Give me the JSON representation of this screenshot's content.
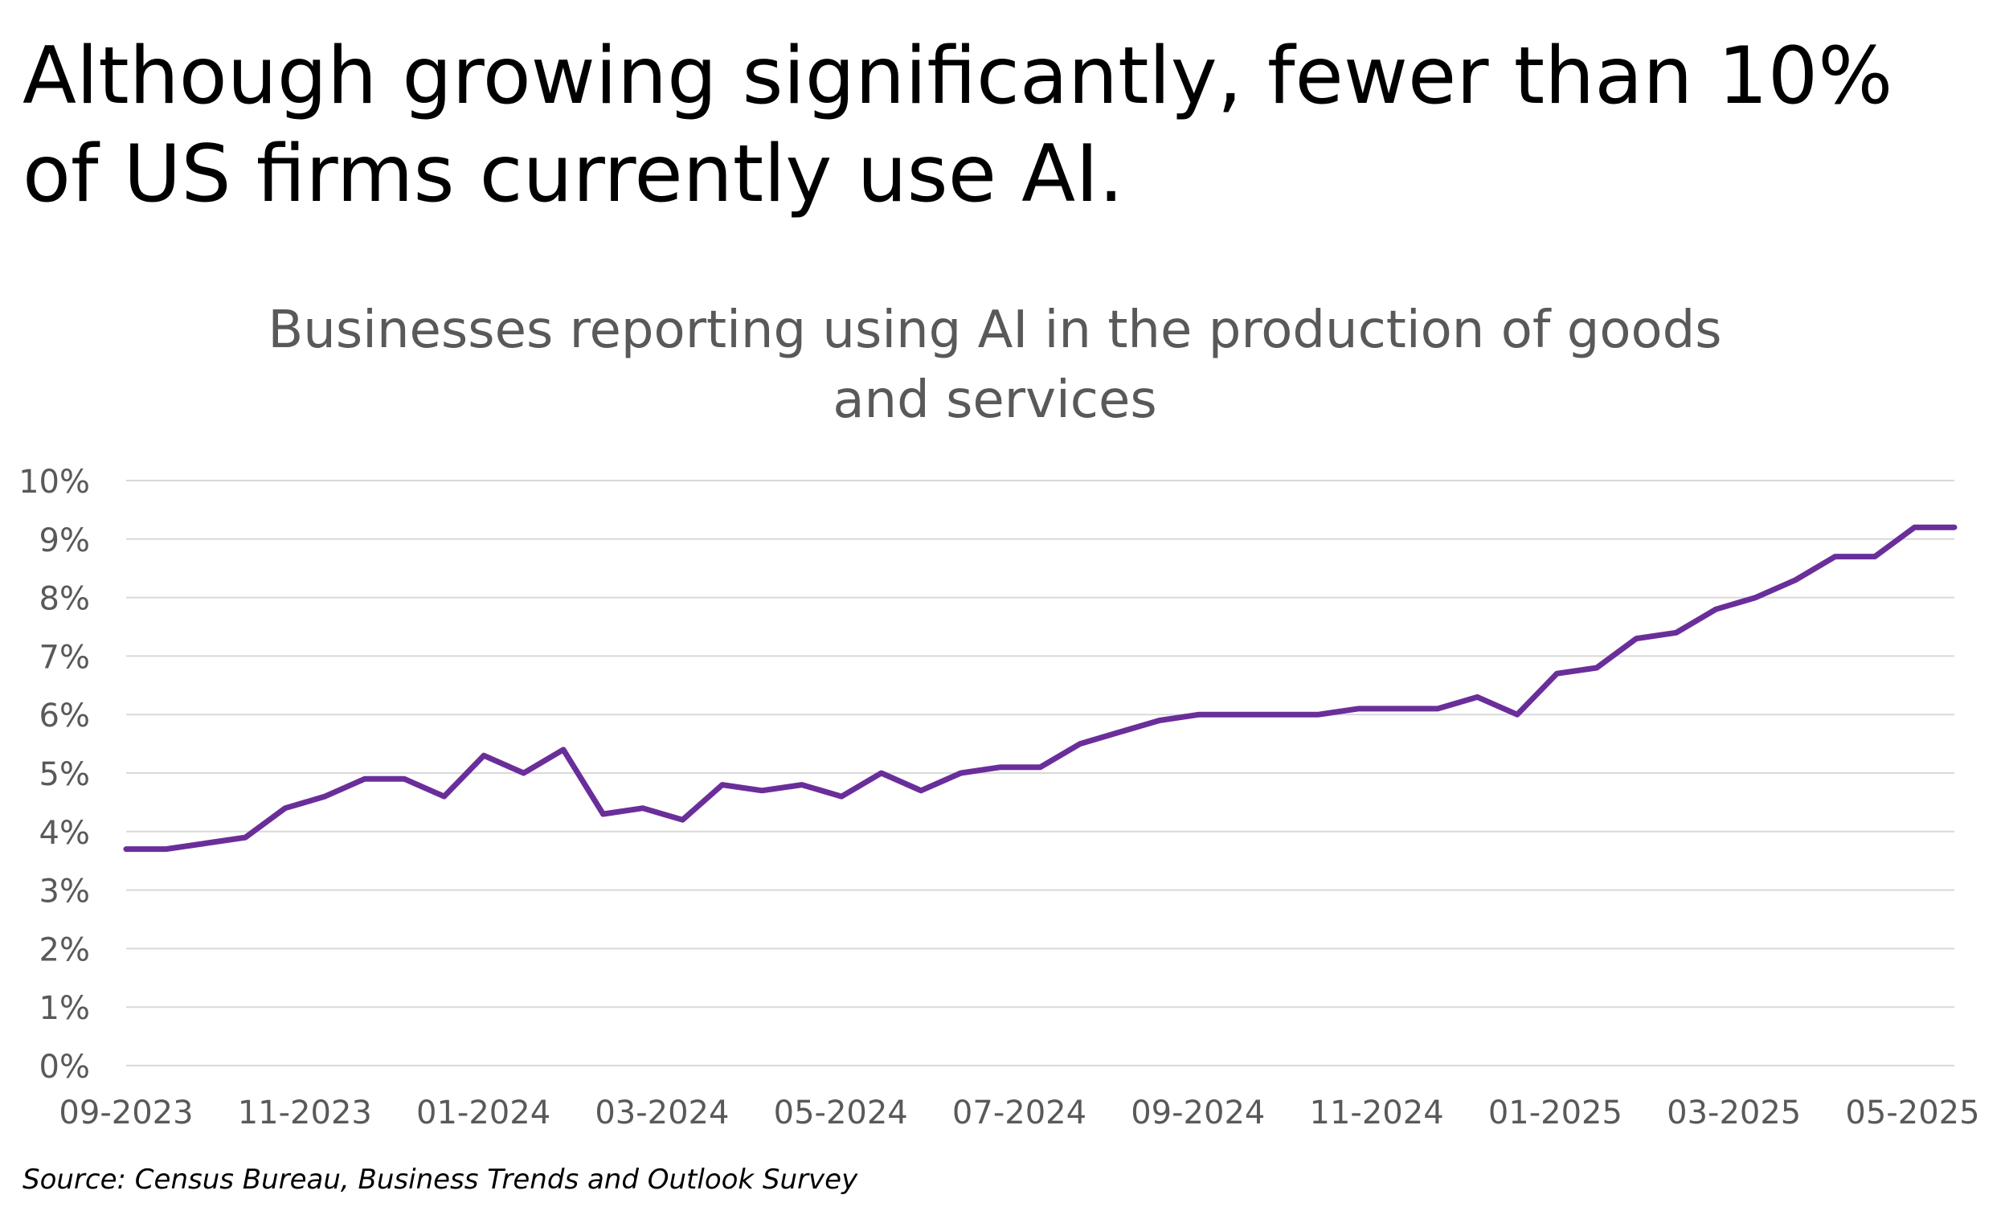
{
  "headline": "Although growing significantly, fewer than 10% of US firms currently use AI.",
  "source": "Source: Census Bureau, Business Trends and Outlook Survey",
  "colors": {
    "line": "#6a2e9a",
    "grid": "#d9d9d9",
    "axis_text": "#595959",
    "title_text": "#595959"
  },
  "chart_data": {
    "type": "line",
    "title_lines": [
      "Businesses reporting using AI in the production of goods",
      "and services"
    ],
    "xlabel": "",
    "ylabel": "",
    "ylim": [
      0,
      10
    ],
    "y_ticks": [
      0,
      1,
      2,
      3,
      4,
      5,
      6,
      7,
      8,
      9,
      10
    ],
    "y_tick_labels": [
      "0%",
      "1%",
      "2%",
      "3%",
      "4%",
      "5%",
      "6%",
      "7%",
      "8%",
      "9%",
      "10%"
    ],
    "x_tick_labels": [
      "09-2023",
      "11-2023",
      "01-2024",
      "03-2024",
      "05-2024",
      "07-2024",
      "09-2024",
      "11-2024",
      "01-2025",
      "03-2025",
      "05-2025"
    ],
    "grid": true,
    "legend": "none",
    "series": [
      {
        "values": [
          3.7,
          3.7,
          3.8,
          3.9,
          4.4,
          4.6,
          4.9,
          4.9,
          4.6,
          5.3,
          5.0,
          5.4,
          4.3,
          4.4,
          4.2,
          4.8,
          4.7,
          4.8,
          4.6,
          5.0,
          4.7,
          5.0,
          5.1,
          5.1,
          5.5,
          5.7,
          5.9,
          6.0,
          6.0,
          6.0,
          6.0,
          6.1,
          6.1,
          6.1,
          6.3,
          6.0,
          6.7,
          6.8,
          7.3,
          7.4,
          7.8,
          8.0,
          8.3,
          8.7,
          8.7,
          9.2,
          9.2
        ]
      }
    ]
  }
}
